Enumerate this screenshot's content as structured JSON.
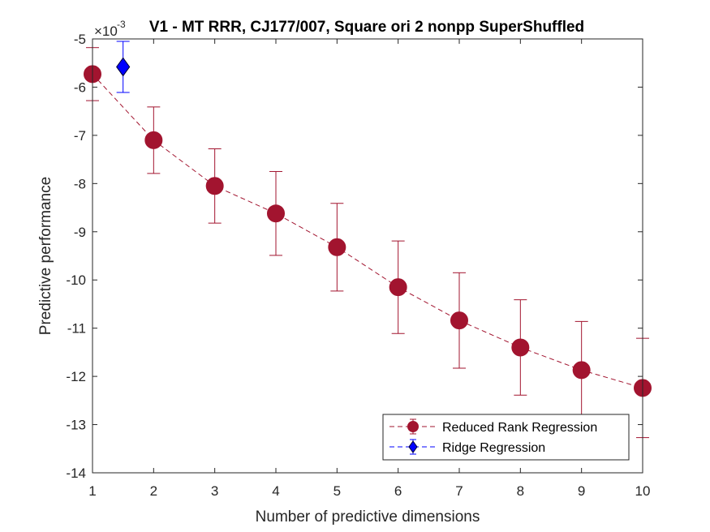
{
  "chart_data": {
    "type": "line",
    "title": "V1 - MT RRR, CJ177/007, Square ori 2 nonpp  SuperShuffled",
    "xlabel": "Number of predictive dimensions",
    "ylabel": "Predictive performance",
    "y_multiplier": "×10",
    "y_exponent": "-3",
    "xlim": [
      1,
      10
    ],
    "ylim": [
      -14,
      -5
    ],
    "x_ticks": [
      1,
      2,
      3,
      4,
      5,
      6,
      7,
      8,
      9,
      10
    ],
    "y_ticks": [
      -14,
      -13,
      -12,
      -11,
      -10,
      -9,
      -8,
      -7,
      -6,
      -5
    ],
    "x_tick_labels": [
      "1",
      "2",
      "3",
      "4",
      "5",
      "6",
      "7",
      "8",
      "9",
      "10"
    ],
    "y_tick_labels": [
      "-14",
      "-13",
      "-12",
      "-11",
      "-10",
      "-9",
      "-8",
      "-7",
      "-6",
      "-5"
    ],
    "legend_position": "bottom-right",
    "series": [
      {
        "name": "Reduced Rank Regression",
        "color": "#A2142F",
        "marker": "circle",
        "line": "dashed",
        "x": [
          1,
          2,
          3,
          4,
          5,
          6,
          7,
          8,
          9,
          10
        ],
        "y": [
          -5.73,
          -7.1,
          -8.05,
          -8.62,
          -9.32,
          -10.15,
          -10.84,
          -11.4,
          -11.87,
          -12.24
        ],
        "err": [
          0.55,
          0.69,
          0.77,
          0.87,
          0.91,
          0.96,
          0.99,
          0.99,
          1.01,
          1.03
        ]
      },
      {
        "name": "Ridge Regression",
        "color": "#0000FF",
        "marker": "diamond",
        "line": "dashed",
        "x": [
          1.5
        ],
        "y": [
          -5.58
        ],
        "err": [
          0.53
        ]
      }
    ]
  }
}
